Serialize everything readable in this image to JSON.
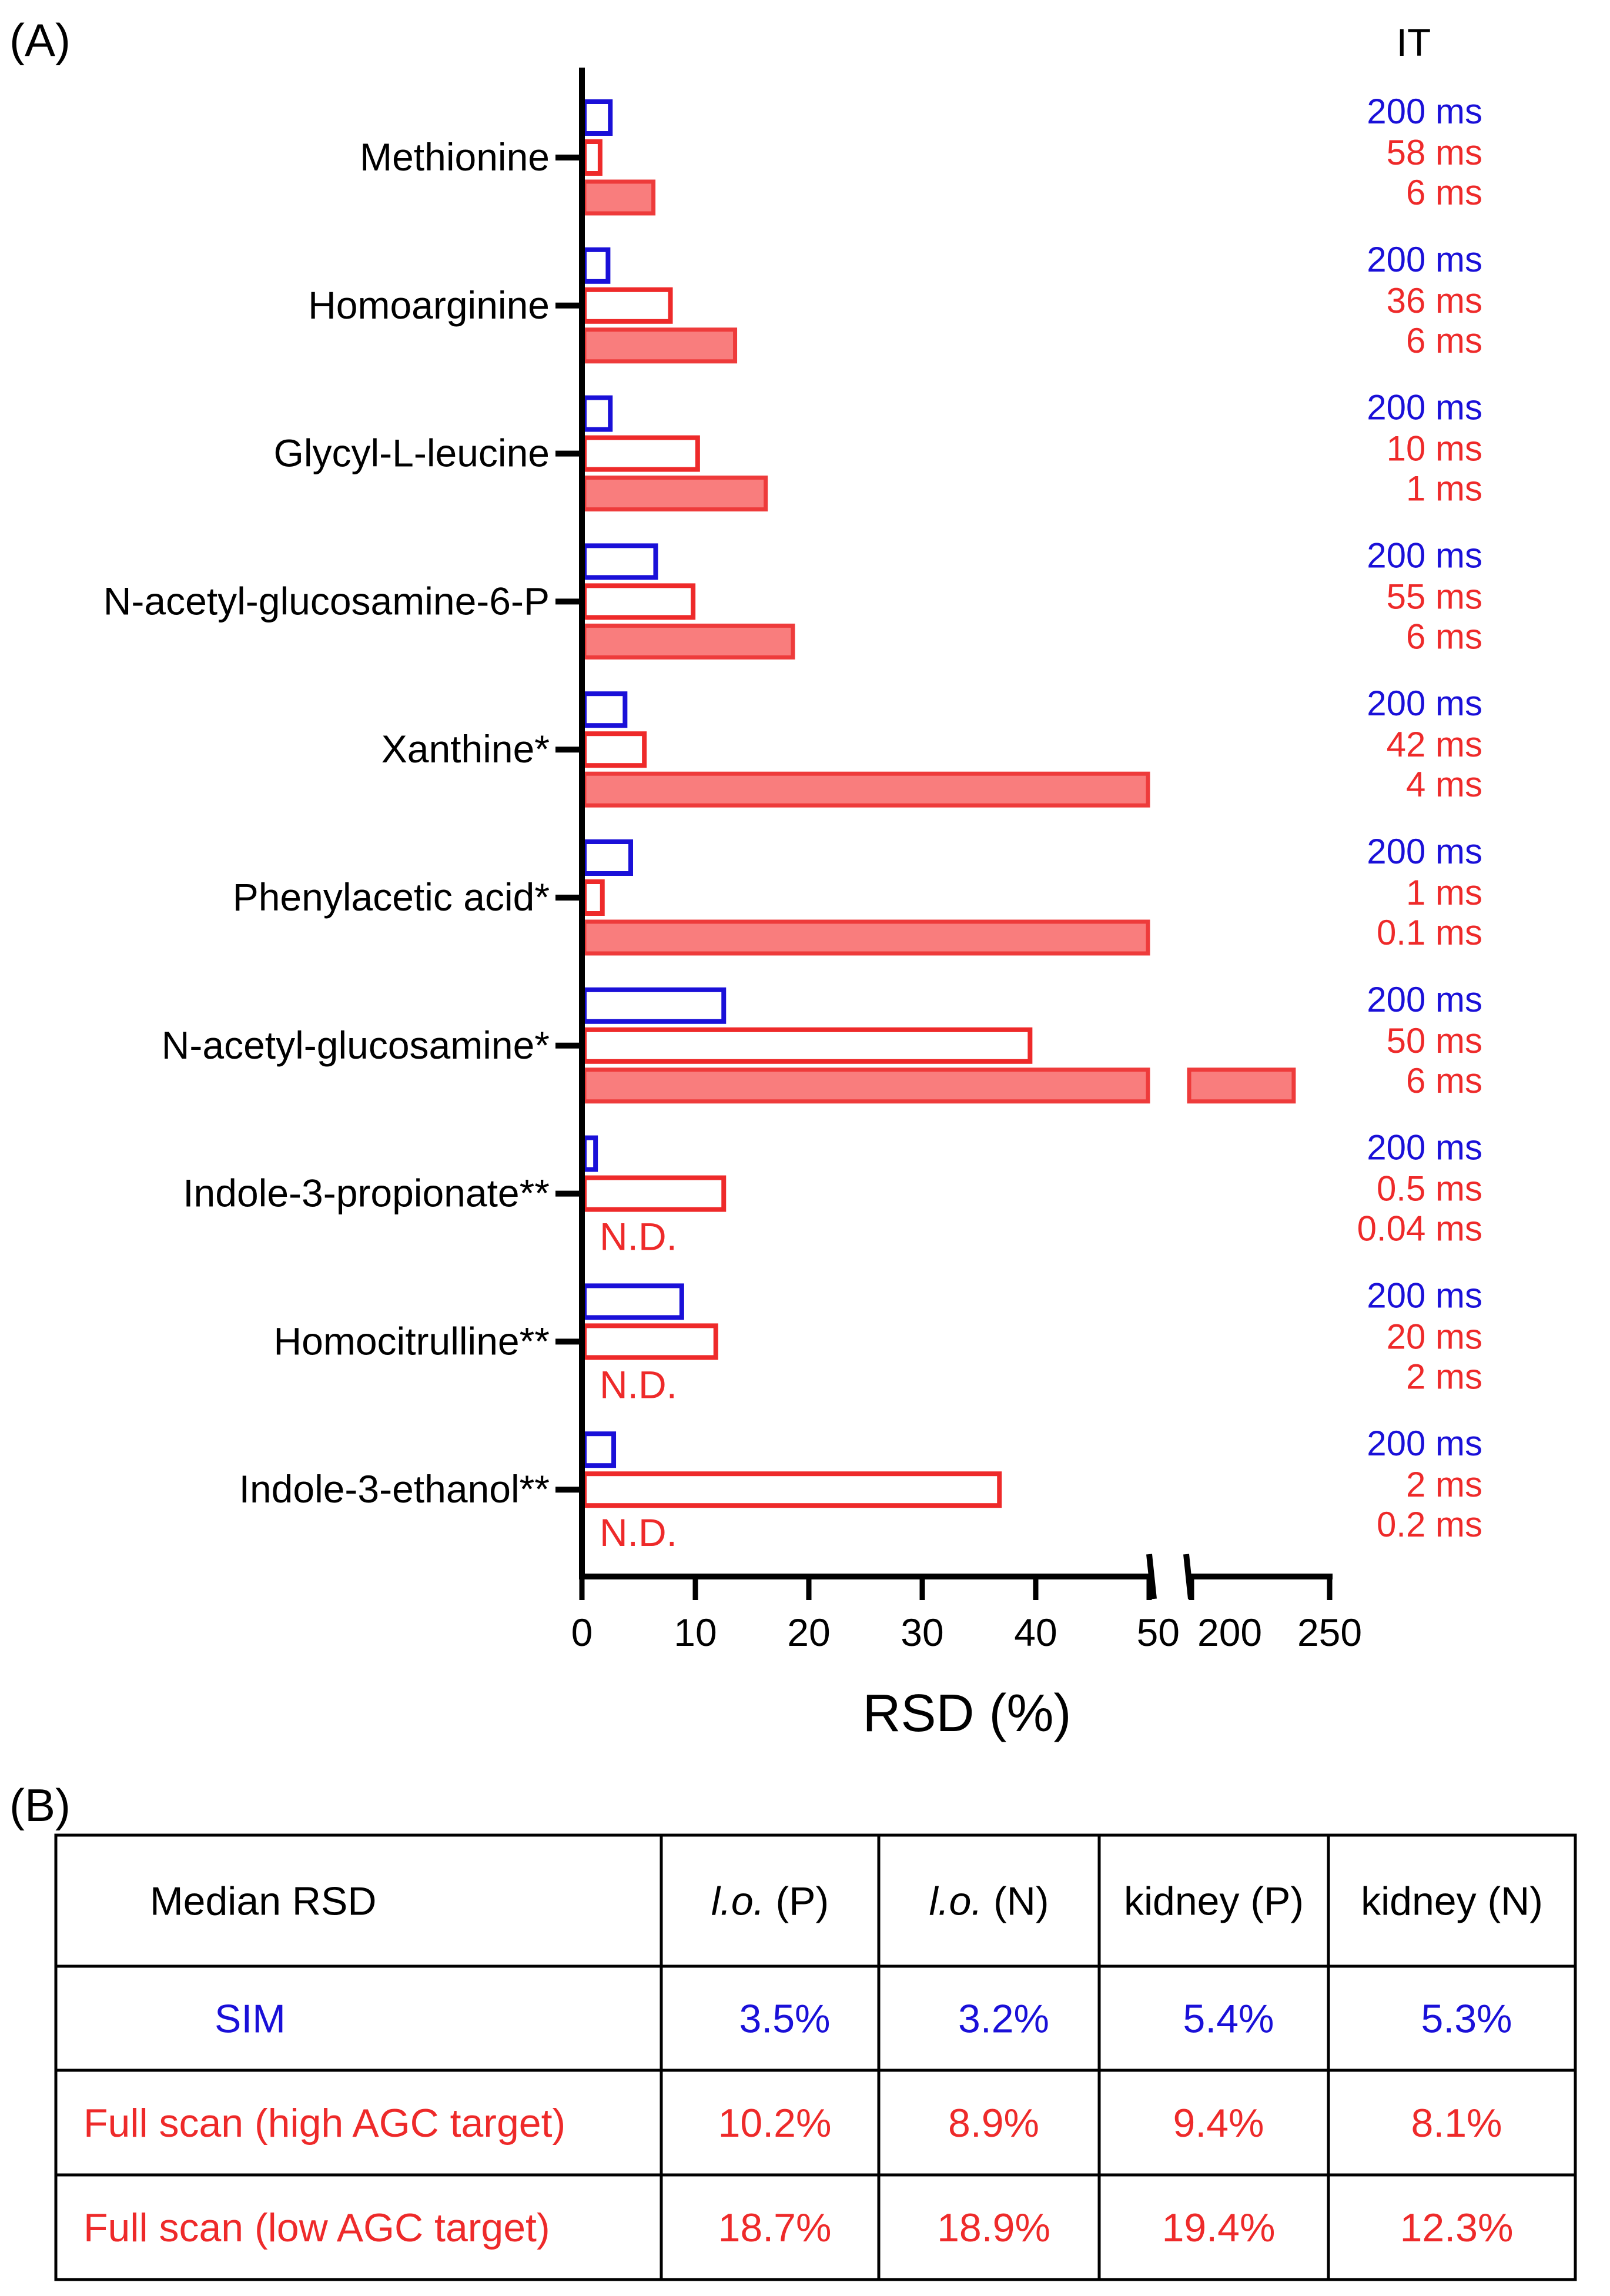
{
  "panel_a": {
    "label": "(A)",
    "it_header": "IT"
  },
  "panel_b": {
    "label": "(B)"
  },
  "colors": {
    "sim": "#1a10d8",
    "full_high": "#ee2a2a",
    "full_low_fill": "#f97d7d",
    "full_low_edge": "#ee3b3b",
    "axis": "#000000"
  },
  "chart_data": {
    "type": "bar",
    "orientation": "horizontal",
    "xlabel": "RSD (%)",
    "axis_segments": [
      {
        "range": [
          0,
          50
        ],
        "ticks": [
          0,
          10,
          20,
          30,
          40,
          50
        ]
      },
      {
        "range": [
          200,
          250
        ],
        "ticks": [
          200,
          250
        ]
      }
    ],
    "axis_break_between": [
      50,
      200
    ],
    "tick_labels": [
      "0",
      "10",
      "20",
      "30",
      "40",
      "50",
      "200",
      "250"
    ],
    "categories": [
      "Methionine",
      "Homoarginine",
      "Glycyl-L-leucine",
      "N-acetyl-glucosamine-6-P",
      "Xanthine*",
      "Phenylacetic acid*",
      "N-acetyl-glucosamine*",
      "Indole-3-propionate**",
      "Homocitrulline**",
      "Indole-3-ethanol**"
    ],
    "series": [
      {
        "name": "SIM",
        "style": "outline-blue",
        "values": [
          2.5,
          2.3,
          2.5,
          6.5,
          3.8,
          4.3,
          12.5,
          1.2,
          8.8,
          2.8
        ],
        "it_labels": [
          "200 ms",
          "200 ms",
          "200 ms",
          "200 ms",
          "200 ms",
          "200 ms",
          "200 ms",
          "200 ms",
          "200 ms",
          "200 ms"
        ]
      },
      {
        "name": "Full scan (high AGC target)",
        "style": "outline-red",
        "values": [
          1.6,
          7.8,
          10.2,
          9.8,
          5.5,
          1.8,
          39.5,
          12.5,
          11.8,
          36.8
        ],
        "it_labels": [
          "58 ms",
          "36 ms",
          "10 ms",
          "55 ms",
          "42 ms",
          "1 ms",
          "50 ms",
          "0.5 ms",
          "20 ms",
          "2 ms"
        ]
      },
      {
        "name": "Full scan (low AGC target)",
        "style": "filled-red",
        "values": [
          6.3,
          13.5,
          16.2,
          18.6,
          200,
          200,
          237,
          null,
          null,
          null
        ],
        "clipped": [
          false,
          false,
          false,
          false,
          true,
          true,
          false,
          false,
          false,
          false
        ],
        "na_label": "N.D.",
        "it_labels": [
          "6 ms",
          "6 ms",
          "1 ms",
          "6 ms",
          "4 ms",
          "0.1 ms",
          "6 ms",
          "0.04 ms",
          "2 ms",
          "0.2 ms"
        ]
      }
    ]
  },
  "table": {
    "headers": [
      {
        "text": "Median RSD"
      },
      {
        "italic": "l.o.",
        "rest": " (P)"
      },
      {
        "italic": "l.o.",
        "rest": " (N)"
      },
      {
        "italic": "",
        "rest": "kidney (P)"
      },
      {
        "italic": "",
        "rest": "kidney (N)"
      }
    ],
    "rows": [
      {
        "label": "SIM",
        "color": "#1a10d8",
        "values": [
          "3.5%",
          "3.2%",
          "5.4%",
          "5.3%"
        ]
      },
      {
        "label": "Full scan (high AGC target)",
        "color": "#ee2a2a",
        "values": [
          "10.2%",
          "8.9%",
          "9.4%",
          "8.1%"
        ]
      },
      {
        "label": "Full scan (low AGC  target)",
        "color": "#ee2a2a",
        "values": [
          "18.7%",
          "18.9%",
          "19.4%",
          "12.3%"
        ]
      }
    ]
  }
}
